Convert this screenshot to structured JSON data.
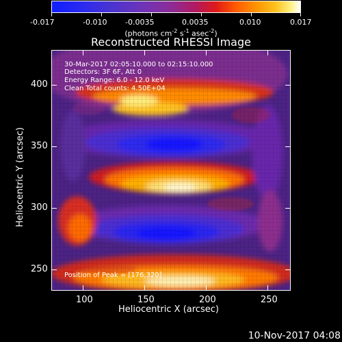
{
  "image": {
    "title": "Reconstructed RHESSI Image",
    "date_range": "30-Mar-2017 02:05:10.000 to 02:15:10.000",
    "detectors": "Detectors: 3F 6F, Att 0",
    "energy_range": "Energy Range: 6.0 - 12.0 keV",
    "clean_and_counts": "Clean     Total counts: 4.50E+04",
    "peak_position": "Position of Peak = [176,320]",
    "timestamp": "10-Nov-2017 04:08"
  },
  "colorbar": {
    "units_main": "(photons cm",
    "units_exp1": "-2",
    "units_mid": " s",
    "units_exp2": "-1",
    "units_end": " asec",
    "units_exp3": "-2",
    "units_tail": ")",
    "tick_labels": [
      "-0.017",
      "-0.010",
      "-0.0035",
      "0.0035",
      "0.010",
      "0.017"
    ],
    "colors": [
      "#1a1aff",
      "#3a2ad8",
      "#5a30c0",
      "#7a30b0",
      "#9b2a90",
      "#c0204a",
      "#e02020",
      "#ff5a00",
      "#ff8c00",
      "#ffb000",
      "#ffd84a",
      "#fff0a0",
      "#ffffff"
    ]
  },
  "axes": {
    "xlabel": "Heliocentric X (arcsec)",
    "ylabel": "Heliocentric Y (arcsec)",
    "x_ticks": [
      "100",
      "150",
      "200",
      "250"
    ],
    "y_ticks": [
      "250",
      "300",
      "350",
      "400"
    ],
    "x_range": [
      73,
      267
    ],
    "y_range": [
      233,
      428
    ]
  }
}
